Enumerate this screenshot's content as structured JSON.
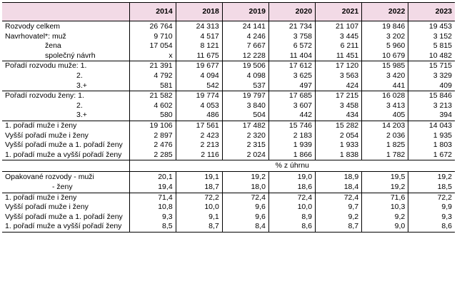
{
  "header": {
    "years": [
      "2014",
      "2018",
      "2019",
      "2020",
      "2021",
      "2022",
      "2023"
    ]
  },
  "groups": [
    {
      "rows": [
        {
          "label": "Rozvody celkem",
          "indent": 0,
          "values": [
            "26 764",
            "24 313",
            "24 141",
            "21 734",
            "21 107",
            "19 846",
            "19 453"
          ]
        },
        {
          "label": "Navrhovatel*: muž",
          "indent": 0,
          "values": [
            "9 710",
            "4 517",
            "4 246",
            "3 758",
            "3 445",
            "3 202",
            "3 152"
          ]
        },
        {
          "label": "žena",
          "indent": 1,
          "values": [
            "17 054",
            "8 121",
            "7 667",
            "6 572",
            "6 211",
            "5 960",
            "5 815"
          ]
        },
        {
          "label": "společný návrh",
          "indent": 1,
          "values": [
            "x",
            "11 675",
            "12 228",
            "11 404",
            "11 451",
            "10 679",
            "10 482"
          ]
        }
      ]
    },
    {
      "rows": [
        {
          "label": "Pořadí rozvodu muže:  1.",
          "indent": 0,
          "values": [
            "21 391",
            "19 677",
            "19 506",
            "17 612",
            "17 120",
            "15 985",
            "15 715"
          ]
        },
        {
          "label": "2.",
          "indent": 2,
          "values": [
            "4 792",
            "4 094",
            "4 098",
            "3 625",
            "3 563",
            "3 420",
            "3 329"
          ]
        },
        {
          "label": "3.+",
          "indent": 2,
          "values": [
            "581",
            "542",
            "537",
            "497",
            "424",
            "441",
            "409"
          ]
        }
      ]
    },
    {
      "rows": [
        {
          "label": "Pořadí rozvodu ženy:   1.",
          "indent": 0,
          "values": [
            "21 582",
            "19 774",
            "19 797",
            "17 685",
            "17 215",
            "16 028",
            "15 846"
          ]
        },
        {
          "label": "2.",
          "indent": 2,
          "values": [
            "4 602",
            "4 053",
            "3 840",
            "3 607",
            "3 458",
            "3 413",
            "3 213"
          ]
        },
        {
          "label": "3.+",
          "indent": 2,
          "values": [
            "580",
            "486",
            "504",
            "442",
            "434",
            "405",
            "394"
          ]
        }
      ]
    },
    {
      "rows": [
        {
          "label": "1. pořadí muže i ženy",
          "indent": 0,
          "values": [
            "19 106",
            "17 561",
            "17 482",
            "15 746",
            "15 282",
            "14 203",
            "14 043"
          ]
        },
        {
          "label": "Vyšší pořadí muže i ženy",
          "indent": 0,
          "values": [
            "2 897",
            "2 423",
            "2 320",
            "2 183",
            "2 054",
            "2 036",
            "1 935"
          ]
        },
        {
          "label": "Vyšší pořadí muže a 1. pořadí ženy",
          "indent": 0,
          "values": [
            "2 476",
            "2 213",
            "2 315",
            "1 939",
            "1 933",
            "1 825",
            "1 803"
          ]
        },
        {
          "label": "1. pořadí muže a vyšší pořadí ženy",
          "indent": 0,
          "values": [
            "2 285",
            "2 116",
            "2 024",
            "1 866",
            "1 838",
            "1 782",
            "1 672"
          ]
        }
      ]
    }
  ],
  "percent_caption": "% z úhrnu",
  "percent_groups": [
    {
      "rows": [
        {
          "label": "Opakované rozvody - muži",
          "indent": 0,
          "values": [
            "20,1",
            "19,1",
            "19,2",
            "19,0",
            "18,9",
            "19,5",
            "19,2"
          ]
        },
        {
          "label": "- ženy",
          "indent": 3,
          "values": [
            "19,4",
            "18,7",
            "18,0",
            "18,6",
            "18,4",
            "19,2",
            "18,5"
          ]
        }
      ]
    },
    {
      "rows": [
        {
          "label": "1. pořadí muže i ženy",
          "indent": 0,
          "values": [
            "71,4",
            "72,2",
            "72,4",
            "72,4",
            "72,4",
            "71,6",
            "72,2"
          ]
        },
        {
          "label": "Vyšší pořadí muže i ženy",
          "indent": 0,
          "values": [
            "10,8",
            "10,0",
            "9,6",
            "10,0",
            "9,7",
            "10,3",
            "9,9"
          ]
        },
        {
          "label": "Vyšší pořadí muže a 1. pořadí ženy",
          "indent": 0,
          "values": [
            "9,3",
            "9,1",
            "9,6",
            "8,9",
            "9,2",
            "9,2",
            "9,3"
          ]
        },
        {
          "label": "1. pořadí muže a vyšší pořadí ženy",
          "indent": 0,
          "values": [
            "8,5",
            "8,7",
            "8,4",
            "8,6",
            "8,7",
            "9,0",
            "8,6"
          ]
        }
      ]
    }
  ]
}
